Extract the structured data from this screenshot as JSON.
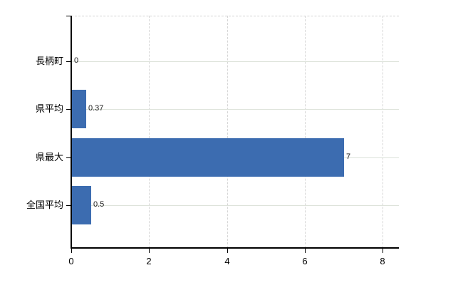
{
  "chart_data": {
    "type": "bar",
    "orientation": "horizontal",
    "title": "",
    "xlabel": "",
    "ylabel": "",
    "categories": [
      "長柄町",
      "県平均",
      "県最大",
      "全国平均"
    ],
    "values": [
      0,
      0.37,
      7,
      0.5
    ],
    "value_labels": [
      "0",
      "0.37",
      "7",
      "0.5"
    ],
    "x_ticks": [
      0,
      2,
      4,
      6,
      8
    ],
    "x_tick_labels": [
      "0",
      "2",
      "4",
      "6",
      "8"
    ],
    "xlim": [
      0,
      8.42
    ],
    "grid": "on",
    "legend": "none",
    "bar_color": "#3c6cb0",
    "h_grid_color": "#dde3da",
    "v_grid_color": "#d6d6d6",
    "axis_color": "#000000",
    "background_color": "#ffffff"
  }
}
